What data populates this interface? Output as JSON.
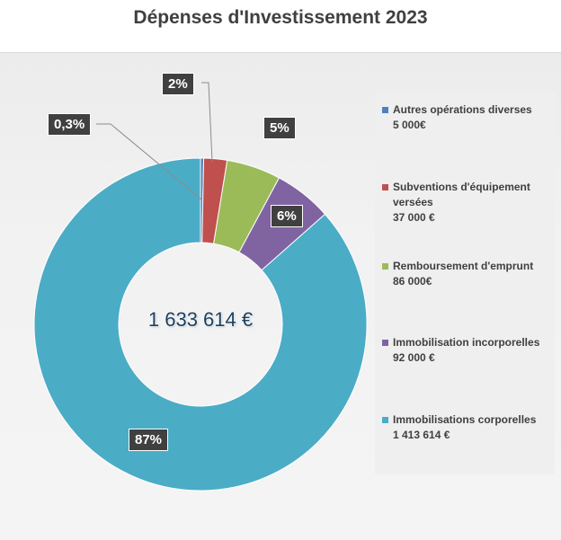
{
  "chart_data": {
    "type": "pie",
    "variant": "donut",
    "title": "Dépenses d'Investissement 2023",
    "center_total": "1 633 614 €",
    "legend_position": "right",
    "slices": [
      {
        "name": "Autres opérations diverses",
        "value": 5000,
        "value_label": "5 000€",
        "percent_label": "0,3%",
        "color": "#4f81bd"
      },
      {
        "name": "Subventions d'équipement versées",
        "value": 37000,
        "value_label": "37 000 €",
        "percent_label": "2%",
        "color": "#c0504d"
      },
      {
        "name": "Remboursement d'emprunt",
        "value": 86000,
        "value_label": "86 000€",
        "percent_label": "5%",
        "color": "#9bbb59"
      },
      {
        "name": "Immobilisation incorporelles",
        "value": 92000,
        "value_label": "92 000 €",
        "percent_label": "6%",
        "color": "#8064a2"
      },
      {
        "name": "Immobilisations corporelles",
        "value": 1413614,
        "value_label": "1 413 614 €",
        "percent_label": "87%",
        "color": "#4bacc6"
      }
    ]
  }
}
